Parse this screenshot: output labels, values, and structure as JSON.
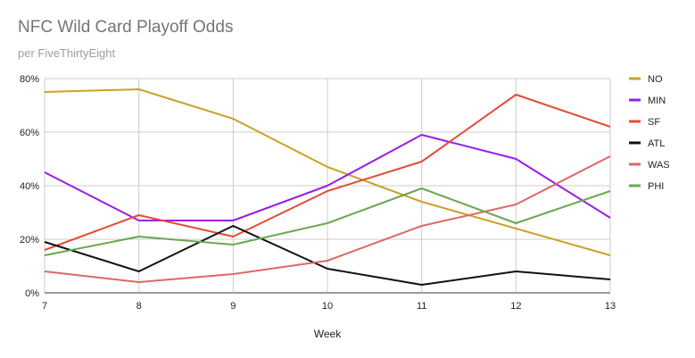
{
  "chart_data": {
    "type": "line",
    "title": "NFC Wild Card Playoff Odds",
    "subtitle": "per FiveThirtyEight",
    "xlabel": "Week",
    "ylabel": "",
    "x": [
      7,
      8,
      9,
      10,
      11,
      12,
      13
    ],
    "x_tick_labels": [
      "7",
      "8",
      "9",
      "10",
      "11",
      "12",
      "13"
    ],
    "ylim": [
      0,
      80
    ],
    "y_ticks": [
      0,
      20,
      40,
      60,
      80
    ],
    "y_tick_labels": [
      "0%",
      "20%",
      "40%",
      "60%",
      "80%"
    ],
    "grid": true,
    "legend_position": "right",
    "series": [
      {
        "name": "NO",
        "color": "#c9a227",
        "values": [
          75,
          76,
          65,
          47,
          34,
          24,
          14
        ]
      },
      {
        "name": "MIN",
        "color": "#9a1ee8",
        "values": [
          45,
          27,
          27,
          40,
          59,
          50,
          28
        ]
      },
      {
        "name": "SF",
        "color": "#e44c38",
        "values": [
          16,
          29,
          21,
          38,
          49,
          74,
          62
        ]
      },
      {
        "name": "ATL",
        "color": "#111111",
        "values": [
          19,
          8,
          25,
          9,
          3,
          8,
          5
        ]
      },
      {
        "name": "WAS",
        "color": "#e06666",
        "values": [
          8,
          4,
          7,
          12,
          25,
          33,
          51
        ]
      },
      {
        "name": "PHI",
        "color": "#6aa84f",
        "values": [
          14,
          21,
          18,
          26,
          39,
          26,
          38
        ]
      }
    ]
  }
}
